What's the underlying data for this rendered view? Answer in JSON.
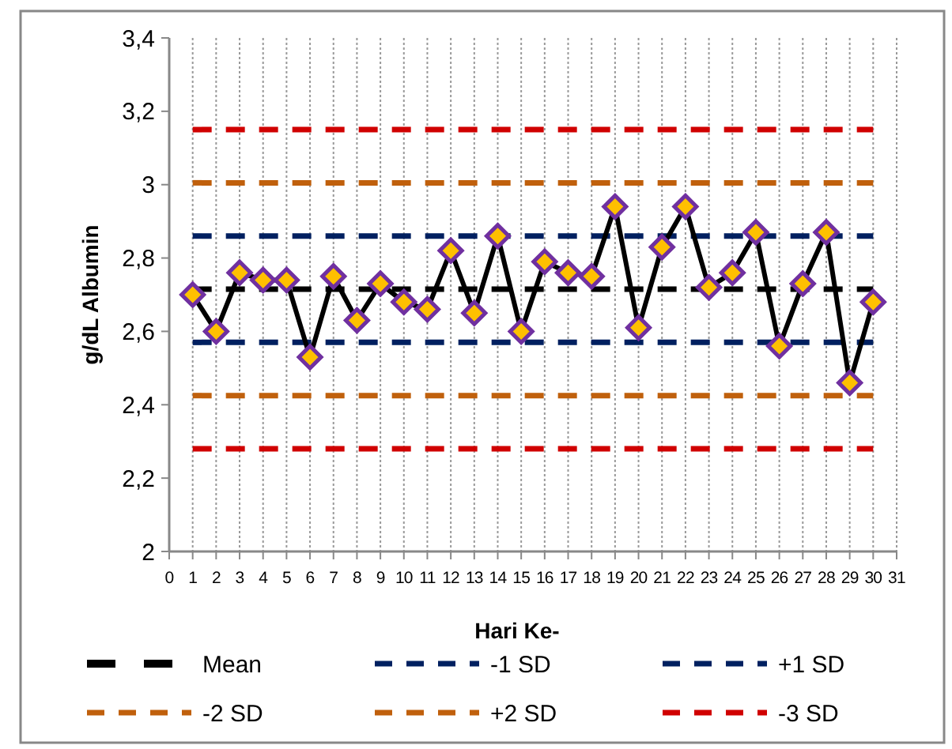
{
  "chart_data": {
    "type": "line",
    "xlabel": "Hari Ke-",
    "ylabel": "g/dL Albumin",
    "xlim": [
      0,
      31
    ],
    "xticks": [
      0,
      1,
      2,
      3,
      4,
      5,
      6,
      7,
      8,
      9,
      10,
      11,
      12,
      13,
      14,
      15,
      16,
      17,
      18,
      19,
      20,
      21,
      22,
      23,
      24,
      25,
      26,
      27,
      28,
      29,
      30,
      31
    ],
    "ylim": [
      2,
      3.4
    ],
    "yticks": [
      2,
      {
        "value": 2.2,
        "label": "2,2"
      },
      {
        "value": 2.4,
        "label": "2,4"
      },
      {
        "value": 2.6,
        "label": "2,6"
      },
      {
        "value": 2.8,
        "label": "2,8"
      },
      3,
      {
        "value": 3.2,
        "label": "3,2"
      },
      {
        "value": 3.4,
        "label": "3,4"
      }
    ],
    "grid": "x",
    "legend": "bottom",
    "series": [
      {
        "name": "Mean",
        "color": "#000000",
        "line_style": "dashed",
        "marker": "none",
        "x": [
          1,
          30
        ],
        "values": [
          2.715,
          2.715
        ]
      },
      {
        "name": "-1 SD",
        "color": "#002060",
        "line_style": "dashed",
        "marker": "none",
        "x": [
          1,
          30
        ],
        "values": [
          2.57,
          2.57
        ]
      },
      {
        "name": "+1 SD",
        "color": "#002060",
        "line_style": "dashed",
        "marker": "none",
        "x": [
          1,
          30
        ],
        "values": [
          2.86,
          2.86
        ]
      },
      {
        "name": "-2 SD",
        "color": "#c0600c",
        "line_style": "dashed",
        "marker": "none",
        "x": [
          1,
          30
        ],
        "values": [
          2.425,
          2.425
        ]
      },
      {
        "name": "+2 SD",
        "color": "#c0600c",
        "line_style": "dashed",
        "marker": "none",
        "x": [
          1,
          30
        ],
        "values": [
          3.005,
          3.005
        ]
      },
      {
        "name": "-3 SD",
        "color": "#d00000",
        "line_style": "dashed",
        "marker": "none",
        "x": [
          1,
          30
        ],
        "values": [
          2.28,
          2.28
        ]
      },
      {
        "color": "#d00000",
        "line_style": "dashed",
        "marker": "none",
        "x": [
          1,
          30
        ],
        "values": [
          3.15,
          3.15
        ]
      },
      {
        "color": "#000000",
        "line_style": "solid",
        "marker": "diamond",
        "x": [
          1,
          2,
          3,
          4,
          5,
          6,
          7,
          8,
          9,
          10,
          11,
          12,
          13,
          14,
          15,
          16,
          17,
          18,
          19,
          20,
          21,
          22,
          23,
          24,
          25,
          26,
          27,
          28,
          29,
          30
        ],
        "values": [
          2.7,
          2.6,
          2.76,
          2.74,
          2.74,
          2.53,
          2.75,
          2.63,
          2.73,
          2.68,
          2.66,
          2.82,
          2.65,
          2.86,
          2.6,
          2.79,
          2.76,
          2.75,
          2.94,
          2.61,
          2.83,
          2.94,
          2.72,
          2.76,
          2.87,
          2.56,
          2.73,
          2.87,
          2.46,
          2.68
        ]
      }
    ]
  }
}
